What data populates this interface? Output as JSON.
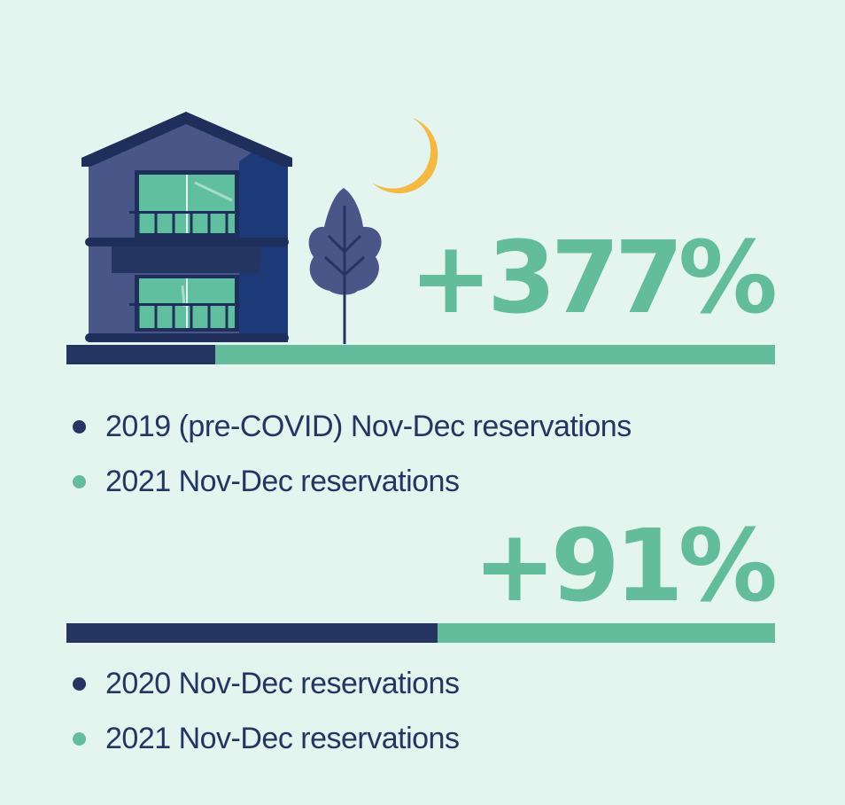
{
  "colors": {
    "background": "#e4f4ee",
    "navy": "#243562",
    "green": "#63bd9c",
    "text": "#243562",
    "moon": "#f4b942",
    "house_body": "#4b5688",
    "house_side": "#1d3a78",
    "window": "#5fbf9e"
  },
  "chart_data": [
    {
      "type": "bar",
      "orientation": "horizontal-stacked",
      "annotation": "+377%",
      "series": [
        {
          "name": "2019 (pre-COVID) Nov-Dec reservations",
          "color": "#243562",
          "value": 100
        },
        {
          "name": "2021 Nov-Dec reservations",
          "color": "#63bd9c",
          "value": 477
        }
      ],
      "legend": [
        "2019 (pre-COVID) Nov-Dec reservations",
        "2021 Nov-Dec reservations"
      ]
    },
    {
      "type": "bar",
      "orientation": "horizontal-stacked",
      "annotation": "+91%",
      "series": [
        {
          "name": "2020 Nov-Dec reservations",
          "color": "#243562",
          "value": 100
        },
        {
          "name": "2021 Nov-Dec reservations",
          "color": "#63bd9c",
          "value": 191
        }
      ],
      "legend": [
        "2020 Nov-Dec reservations",
        "2021 Nov-Dec reservations"
      ]
    }
  ],
  "illustration": {
    "icons": [
      "house-icon",
      "tree-icon",
      "moon-icon"
    ]
  }
}
